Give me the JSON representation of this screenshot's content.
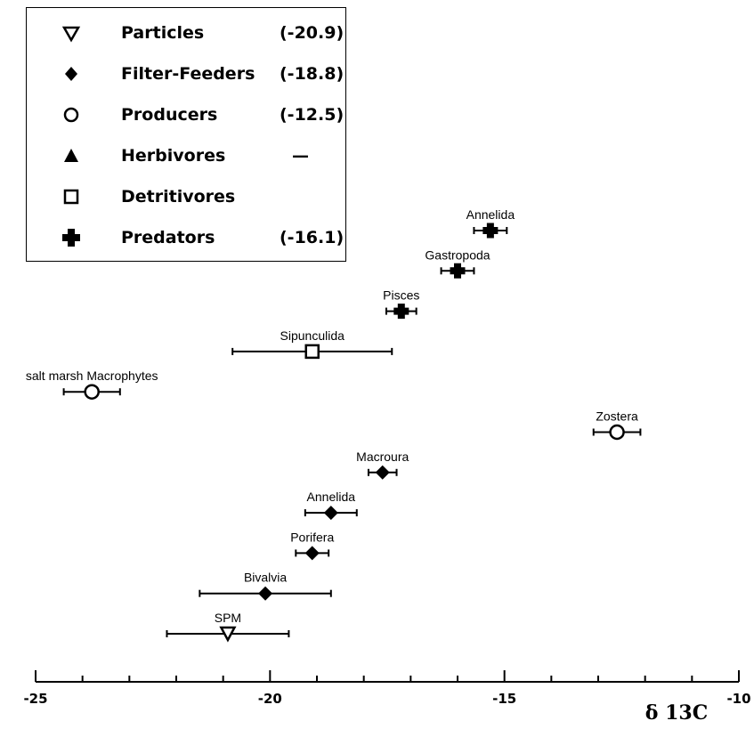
{
  "legend": [
    {
      "symbol": "triangle-down-open",
      "name": "Particles",
      "value": "(-20.9)"
    },
    {
      "symbol": "diamond-filled",
      "name": "Filter-Feeders",
      "value": "(-18.8)"
    },
    {
      "symbol": "circle-open",
      "name": "Producers",
      "value": "(-12.5)"
    },
    {
      "symbol": "triangle-up-filled",
      "name": "Herbivores",
      "value": "—"
    },
    {
      "symbol": "square-open",
      "name": "Detritivores",
      "value": ""
    },
    {
      "symbol": "cross-filled",
      "name": "Predators",
      "value": "(-16.1)"
    }
  ],
  "chart_data": {
    "type": "scatter",
    "title": "",
    "xlabel": "δ 13C",
    "ylabel": "",
    "xlim": [
      -25,
      -10
    ],
    "xticks": [
      -25,
      -20,
      -15,
      -10
    ],
    "grid": false,
    "legend_position": "top-left",
    "y_axis": "categorical (no values)",
    "points": [
      {
        "label": "Annelida",
        "group": "Predators",
        "symbol": "cross-filled",
        "x": -15.3,
        "err": 0.35,
        "row": 1
      },
      {
        "label": "Gastropoda",
        "group": "Predators",
        "symbol": "cross-filled",
        "x": -16.0,
        "err": 0.35,
        "row": 2
      },
      {
        "label": "Pisces",
        "group": "Predators",
        "symbol": "cross-filled",
        "x": -17.2,
        "err": 0.32,
        "row": 3
      },
      {
        "label": "Sipunculida",
        "group": "Detritivores",
        "symbol": "square-open",
        "x": -19.1,
        "err": 1.7,
        "row": 4
      },
      {
        "label": "salt marsh Macrophytes",
        "group": "Producers",
        "symbol": "circle-open",
        "x": -23.8,
        "err": 0.6,
        "row": 5
      },
      {
        "label": "Zostera",
        "group": "Producers",
        "symbol": "circle-open",
        "x": -12.6,
        "err": 0.5,
        "row": 6
      },
      {
        "label": "Macroura",
        "group": "Filter-Feeders",
        "symbol": "diamond-filled",
        "x": -17.6,
        "err": 0.3,
        "row": 7
      },
      {
        "label": "Annelida",
        "group": "Filter-Feeders",
        "symbol": "diamond-filled",
        "x": -18.7,
        "err": 0.55,
        "row": 8
      },
      {
        "label": "Porifera",
        "group": "Filter-Feeders",
        "symbol": "diamond-filled",
        "x": -19.1,
        "err": 0.35,
        "row": 9
      },
      {
        "label": "Bivalvia",
        "group": "Filter-Feeders",
        "symbol": "diamond-filled",
        "x": -20.1,
        "err": 1.4,
        "row": 10
      },
      {
        "label": "SPM",
        "group": "Particles",
        "symbol": "triangle-down-open",
        "x": -20.9,
        "err": 1.3,
        "row": 11
      }
    ]
  }
}
